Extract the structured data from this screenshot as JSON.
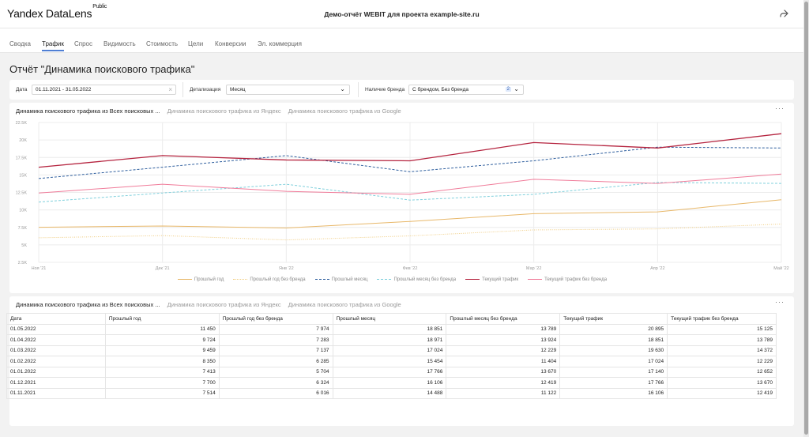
{
  "header": {
    "logo": "Yandex DataLens",
    "logo_badge": "Public",
    "title": "Демо-отчёт WEBIT для проекта example-site.ru",
    "share_icon": "share-icon"
  },
  "tabs": [
    {
      "label": "Сводка"
    },
    {
      "label": "Трафик",
      "active": true
    },
    {
      "label": "Спрос"
    },
    {
      "label": "Видимость"
    },
    {
      "label": "Стоимость"
    },
    {
      "label": "Цели"
    },
    {
      "label": "Конверсии"
    },
    {
      "label": "Эл. коммерция"
    }
  ],
  "report_title": "Отчёт \"Динамика поискового трафика\"",
  "filters": {
    "date_label": "Дата",
    "date_value": "01.11.2021 - 31.05.2022",
    "detail_label": "Детализация",
    "detail_value": "Месяц",
    "brand_label": "Наличие бренда",
    "brand_value": "С брендом, Без бренда",
    "brand_count": "2"
  },
  "chart_card": {
    "tabs": [
      "Динамика поискового трафика из Всех поисковых ...",
      "Динамика поискового трафика из Яндекс",
      "Динамика поискового трафика из Google"
    ],
    "more": "···"
  },
  "table_card": {
    "tabs": [
      "Динамика поискового трафика из Всех поисковых ...",
      "Динамика поискового трафика из Яндекс",
      "Динамика поискового трафика из Google"
    ],
    "more": "···"
  },
  "colors": {
    "accent": "#4f7fd4",
    "current": "#b5243f",
    "current_nobrand": "#f07c9a",
    "prev_month": "#2f5f9e",
    "prev_month_nobrand": "#7fd0dc",
    "prev_year": "#e8b86a",
    "prev_year_nobrand": "#f0cd82"
  },
  "chart_data": {
    "type": "line",
    "x": [
      "Ноя '21",
      "Дек '21",
      "Янв '22",
      "Фев '22",
      "Мар '22",
      "Апр '22",
      "Май '22"
    ],
    "y_ticks": [
      "2.5K",
      "5K",
      "7.5K",
      "10K",
      "12.5K",
      "15K",
      "17.5K",
      "20K",
      "22.5K"
    ],
    "ylim": [
      2500,
      22500
    ],
    "legend_position": "bottom",
    "series": [
      {
        "name": "Прошлый год",
        "values": [
          7514,
          7700,
          7413,
          8350,
          9459,
          9724,
          11450
        ],
        "color": "#e8b86a",
        "dash": "solid"
      },
      {
        "name": "Прошлый год без бренда",
        "values": [
          6016,
          6324,
          5704,
          6285,
          7137,
          7283,
          7974
        ],
        "color": "#f0cd82",
        "dash": "dot"
      },
      {
        "name": "Прошлый месяц",
        "values": [
          14488,
          16106,
          17766,
          15454,
          17024,
          18971,
          18851
        ],
        "color": "#2f5f9e",
        "dash": "dash"
      },
      {
        "name": "Прошлый месяц без бренда",
        "values": [
          11122,
          12419,
          13670,
          11404,
          12229,
          13924,
          13789
        ],
        "color": "#7fd0dc",
        "dash": "dash"
      },
      {
        "name": "Текущий трафик",
        "values": [
          16106,
          17766,
          17140,
          17024,
          19630,
          18851,
          20895
        ],
        "color": "#b5243f",
        "dash": "solid"
      },
      {
        "name": "Текущий трафик без бренда",
        "values": [
          12419,
          13670,
          12652,
          12229,
          14372,
          13789,
          15125
        ],
        "color": "#f07c9a",
        "dash": "solid"
      }
    ]
  },
  "table": {
    "columns": [
      "Дата",
      "Прошлый год",
      "Прошлый год без бренда",
      "Прошлый месяц",
      "Прошлый месяц без бренда",
      "Текущий трафик",
      "Текущий трафик без бренда"
    ],
    "rows": [
      [
        "01.05.2022",
        "11 450",
        "7 974",
        "18 851",
        "13 789",
        "20 895",
        "15 125"
      ],
      [
        "01.04.2022",
        "9 724",
        "7 283",
        "18 971",
        "13 924",
        "18 851",
        "13 789"
      ],
      [
        "01.03.2022",
        "9 459",
        "7 137",
        "17 024",
        "12 229",
        "19 630",
        "14 372"
      ],
      [
        "01.02.2022",
        "8 350",
        "6 285",
        "15 454",
        "11 404",
        "17 024",
        "12 229"
      ],
      [
        "01.01.2022",
        "7 413",
        "5 704",
        "17 766",
        "13 670",
        "17 140",
        "12 652"
      ],
      [
        "01.12.2021",
        "7 700",
        "6 324",
        "16 106",
        "12 419",
        "17 766",
        "13 670"
      ],
      [
        "01.11.2021",
        "7 514",
        "6 016",
        "14 488",
        "11 122",
        "16 106",
        "12 419"
      ]
    ]
  }
}
